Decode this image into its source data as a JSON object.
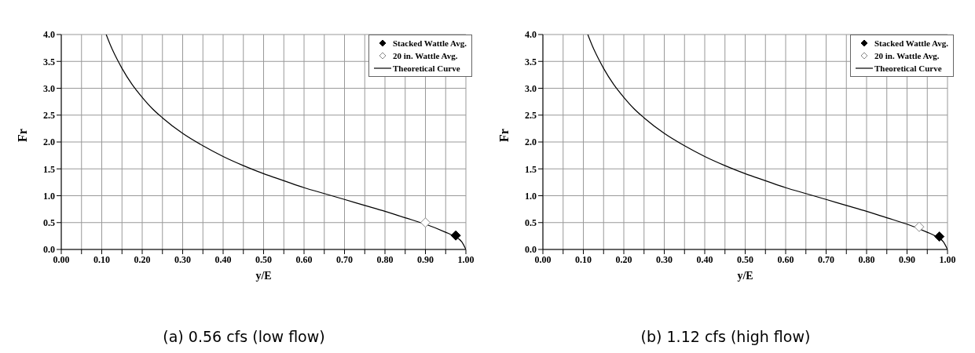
{
  "chart_data": [
    {
      "type": "scatter",
      "title": "(a) 0.56 cfs (low flow)",
      "xlabel": "y/E",
      "ylabel": "Fr",
      "xlim": [
        0,
        1
      ],
      "ylim": [
        0,
        4
      ],
      "xticks": [
        {
          "value": 0,
          "label": "0.00"
        },
        {
          "value": 0.05,
          "label": null
        },
        {
          "value": 0.1,
          "label": "0.10"
        },
        {
          "value": 0.15,
          "label": null
        },
        {
          "value": 0.2,
          "label": "0.20"
        },
        {
          "value": 0.25,
          "label": null
        },
        {
          "value": 0.3,
          "label": "0.30"
        },
        {
          "value": 0.35,
          "label": null
        },
        {
          "value": 0.4,
          "label": "0.40"
        },
        {
          "value": 0.45,
          "label": null
        },
        {
          "value": 0.5,
          "label": "0.50"
        },
        {
          "value": 0.55,
          "label": null
        },
        {
          "value": 0.6,
          "label": "0.60"
        },
        {
          "value": 0.65,
          "label": null
        },
        {
          "value": 0.7,
          "label": "0.70"
        },
        {
          "value": 0.75,
          "label": null
        },
        {
          "value": 0.8,
          "label": "0.80"
        },
        {
          "value": 0.85,
          "label": null
        },
        {
          "value": 0.9,
          "label": "0.90"
        },
        {
          "value": 0.95,
          "label": null
        },
        {
          "value": 1,
          "label": "1.00"
        }
      ],
      "yticks": [
        {
          "value": 0,
          "label": "0.0"
        },
        0.5,
        {
          "value": 1,
          "label": "1.0"
        },
        1.5,
        {
          "value": 2,
          "label": "2.0"
        },
        2.5,
        {
          "value": 3,
          "label": "3.0"
        },
        3.5,
        {
          "value": 4,
          "label": "4.0"
        }
      ],
      "grid": true,
      "legend": "top right",
      "series": [
        {
          "name": "Stacked Wattle Avg.",
          "marker": "diamond",
          "color": "#000000",
          "x": [
            0.975
          ],
          "values": [
            0.26
          ]
        },
        {
          "name": "20 in. Wattle Avg.",
          "marker": "diamond",
          "color": "#ffffff",
          "x": [
            0.9
          ],
          "values": [
            0.5
          ]
        },
        {
          "name": "Theoretical Curve",
          "type": "line",
          "marker": "none",
          "line_style": "solid",
          "color": "#000000",
          "x": [
            0.111,
            0.12,
            0.13,
            0.14,
            0.15,
            0.175,
            0.2,
            0.225,
            0.25,
            0.3,
            0.35,
            0.4,
            0.45,
            0.5,
            0.55,
            0.6,
            0.65,
            0.7,
            0.75,
            0.8,
            0.85,
            0.9,
            0.95,
            0.97,
            0.99,
            1.0
          ],
          "values": [
            4.0,
            3.83,
            3.66,
            3.51,
            3.37,
            3.07,
            2.83,
            2.62,
            2.45,
            2.16,
            1.93,
            1.73,
            1.56,
            1.41,
            1.28,
            1.15,
            1.04,
            0.93,
            0.82,
            0.71,
            0.59,
            0.47,
            0.32,
            0.25,
            0.14,
            0
          ]
        }
      ]
    },
    {
      "type": "scatter",
      "title": "(b) 1.12 cfs (high flow)",
      "xlabel": "y/E",
      "ylabel": "Fr",
      "xlim": [
        0,
        1
      ],
      "ylim": [
        0,
        4
      ],
      "xticks": [
        {
          "value": 0,
          "label": "0.00"
        },
        {
          "value": 0.05,
          "label": null
        },
        {
          "value": 0.1,
          "label": "0.10"
        },
        {
          "value": 0.15,
          "label": null
        },
        {
          "value": 0.2,
          "label": "0.20"
        },
        {
          "value": 0.25,
          "label": null
        },
        {
          "value": 0.3,
          "label": "0.30"
        },
        {
          "value": 0.35,
          "label": null
        },
        {
          "value": 0.4,
          "label": "0.40"
        },
        {
          "value": 0.45,
          "label": null
        },
        {
          "value": 0.5,
          "label": "0.50"
        },
        {
          "value": 0.55,
          "label": null
        },
        {
          "value": 0.6,
          "label": "0.60"
        },
        {
          "value": 0.65,
          "label": null
        },
        {
          "value": 0.7,
          "label": "0.70"
        },
        {
          "value": 0.75,
          "label": null
        },
        {
          "value": 0.8,
          "label": "0.80"
        },
        {
          "value": 0.85,
          "label": null
        },
        {
          "value": 0.9,
          "label": "0.90"
        },
        {
          "value": 0.95,
          "label": null
        },
        {
          "value": 1,
          "label": "1.00"
        }
      ],
      "yticks": [
        {
          "value": 0,
          "label": "0.0"
        },
        0.5,
        {
          "value": 1,
          "label": "1.0"
        },
        1.5,
        {
          "value": 2,
          "label": "2.0"
        },
        2.5,
        {
          "value": 3,
          "label": "3.0"
        },
        3.5,
        {
          "value": 4,
          "label": "4.0"
        }
      ],
      "grid": true,
      "legend": "top right",
      "series": [
        {
          "name": "Stacked Wattle Avg.",
          "marker": "diamond",
          "color": "#000000",
          "x": [
            0.98
          ],
          "values": [
            0.24
          ]
        },
        {
          "name": "20 in. Wattle Avg.",
          "marker": "diamond",
          "color": "#ffffff",
          "x": [
            0.93
          ],
          "values": [
            0.42
          ]
        },
        {
          "name": "Theoretical Curve",
          "type": "line",
          "marker": "none",
          "line_style": "solid",
          "color": "#000000",
          "x": [
            0.111,
            0.12,
            0.13,
            0.14,
            0.15,
            0.175,
            0.2,
            0.225,
            0.25,
            0.3,
            0.35,
            0.4,
            0.45,
            0.5,
            0.55,
            0.6,
            0.65,
            0.7,
            0.75,
            0.8,
            0.85,
            0.9,
            0.95,
            0.97,
            0.99,
            1.0
          ],
          "values": [
            4.0,
            3.83,
            3.66,
            3.51,
            3.37,
            3.07,
            2.83,
            2.62,
            2.45,
            2.16,
            1.93,
            1.73,
            1.56,
            1.41,
            1.28,
            1.15,
            1.04,
            0.93,
            0.82,
            0.71,
            0.59,
            0.47,
            0.32,
            0.25,
            0.14,
            0
          ]
        }
      ]
    }
  ]
}
